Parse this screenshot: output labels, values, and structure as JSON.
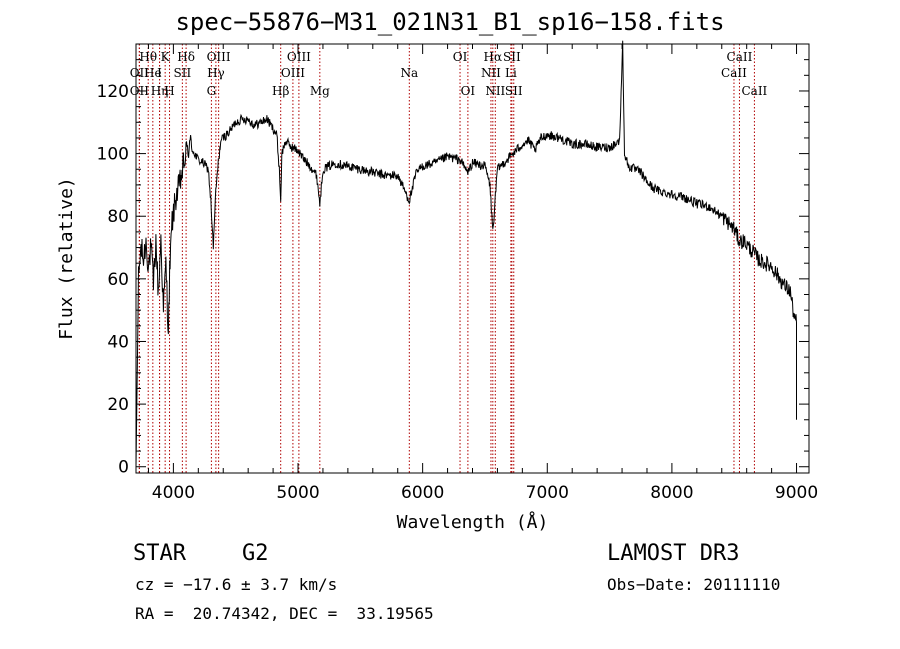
{
  "chart_data": {
    "type": "line",
    "title": "spec−55876−M31_021N31_B1_sp16−158.fits",
    "xlabel": "Wavelength (Å)",
    "ylabel": "Flux (relative)",
    "xlim": [
      3700,
      9100
    ],
    "ylim": [
      -2,
      135
    ],
    "xticks": [
      4000,
      5000,
      6000,
      7000,
      8000,
      9000
    ],
    "yticks": [
      0,
      20,
      40,
      60,
      80,
      100,
      120
    ],
    "x": [
      3700,
      3720,
      3740,
      3760,
      3780,
      3800,
      3820,
      3840,
      3860,
      3880,
      3900,
      3920,
      3940,
      3960,
      3970,
      3990,
      4020,
      4050,
      4080,
      4101,
      4130,
      4170,
      4200,
      4240,
      4280,
      4300,
      4320,
      4340,
      4360,
      4380,
      4400,
      4450,
      4500,
      4550,
      4600,
      4650,
      4700,
      4750,
      4800,
      4830,
      4850,
      4861,
      4870,
      4900,
      4950,
      5000,
      5050,
      5100,
      5150,
      5175,
      5200,
      5300,
      5400,
      5500,
      5600,
      5700,
      5800,
      5893,
      5950,
      6000,
      6100,
      6200,
      6300,
      6363,
      6400,
      6500,
      6540,
      6563,
      6580,
      6600,
      6650,
      6700,
      6750,
      6800,
      6850,
      6900,
      6950,
      7000,
      7100,
      7200,
      7300,
      7400,
      7500,
      7580,
      7605,
      7620,
      7650,
      7700,
      7750,
      7800,
      7850,
      7900,
      8000,
      8100,
      8200,
      8300,
      8400,
      8450,
      8500,
      8542,
      8580,
      8620,
      8662,
      8700,
      8750,
      8800,
      8850,
      8900,
      8950,
      8980,
      9000
    ],
    "y": [
      0,
      60,
      70,
      66,
      72,
      64,
      70,
      58,
      72,
      55,
      73,
      50,
      65,
      43,
      62,
      78,
      86,
      90,
      96,
      100,
      103,
      100,
      98,
      97,
      95,
      85,
      70,
      88,
      97,
      104,
      105,
      107,
      110,
      111,
      111,
      109,
      110,
      111,
      108,
      106,
      95,
      85,
      100,
      104,
      102,
      101,
      98,
      96,
      93,
      84,
      95,
      97,
      96,
      95,
      94,
      93,
      93,
      85,
      94,
      96,
      97,
      99,
      98,
      94,
      97,
      96,
      90,
      75,
      84,
      95,
      97,
      99,
      101,
      103,
      104,
      101,
      105,
      106,
      105,
      103,
      103,
      102,
      102,
      104,
      135,
      100,
      96,
      95,
      94,
      91,
      89,
      88,
      87,
      86,
      84,
      83,
      80,
      78,
      76,
      72,
      72,
      70,
      68,
      66,
      65,
      64,
      61,
      58,
      56,
      48,
      46
    ],
    "lines": [
      {
        "label": "Hθ",
        "x": 3798,
        "row": 0
      },
      {
        "label": "OII",
        "x": 3727,
        "row": 1
      },
      {
        "label": "OII",
        "x": 3727,
        "row": 2
      },
      {
        "label": "He",
        "x": 3835,
        "row": 1
      },
      {
        "label": "Hη",
        "x": 3889,
        "row": 2
      },
      {
        "label": "K",
        "x": 3934,
        "row": 0
      },
      {
        "label": "I",
        "x": 3889,
        "row": 1
      },
      {
        "label": "H",
        "x": 3969,
        "row": 2
      },
      {
        "label": "SII",
        "x": 4072,
        "row": 1
      },
      {
        "label": "Hδ",
        "x": 4102,
        "row": 0
      },
      {
        "label": "OIII",
        "x": 4363,
        "row": 0
      },
      {
        "label": "Hγ",
        "x": 4341,
        "row": 1
      },
      {
        "label": "G",
        "x": 4305,
        "row": 2
      },
      {
        "label": "OIII",
        "x": 5007,
        "row": 0
      },
      {
        "label": "OIII",
        "x": 4959,
        "row": 1
      },
      {
        "label": "Hβ",
        "x": 4861,
        "row": 2
      },
      {
        "label": "Mg",
        "x": 5175,
        "row": 2
      },
      {
        "label": "Na",
        "x": 5893,
        "row": 1
      },
      {
        "label": "OI",
        "x": 6300,
        "row": 0
      },
      {
        "label": "OI",
        "x": 6363,
        "row": 2
      },
      {
        "label": "Hα",
        "x": 6563,
        "row": 0
      },
      {
        "label": "SII",
        "x": 6716,
        "row": 0
      },
      {
        "label": "NII",
        "x": 6548,
        "row": 1
      },
      {
        "label": "Li",
        "x": 6708,
        "row": 1
      },
      {
        "label": "NII",
        "x": 6583,
        "row": 2
      },
      {
        "label": "SII",
        "x": 6731,
        "row": 2
      },
      {
        "label": "CaII",
        "x": 8542,
        "row": 0
      },
      {
        "label": "CaII",
        "x": 8498,
        "row": 1
      },
      {
        "label": "CaII",
        "x": 8662,
        "row": 2
      }
    ]
  },
  "info": {
    "object_class": "STAR",
    "subclass": "G2",
    "survey": "LAMOST DR3",
    "redshift": "cz = −17.6 ± 3.7 km/s",
    "obs_date": "Obs−Date: 20111110",
    "coords": "RA =  20.74342, DEC =  33.19565"
  }
}
